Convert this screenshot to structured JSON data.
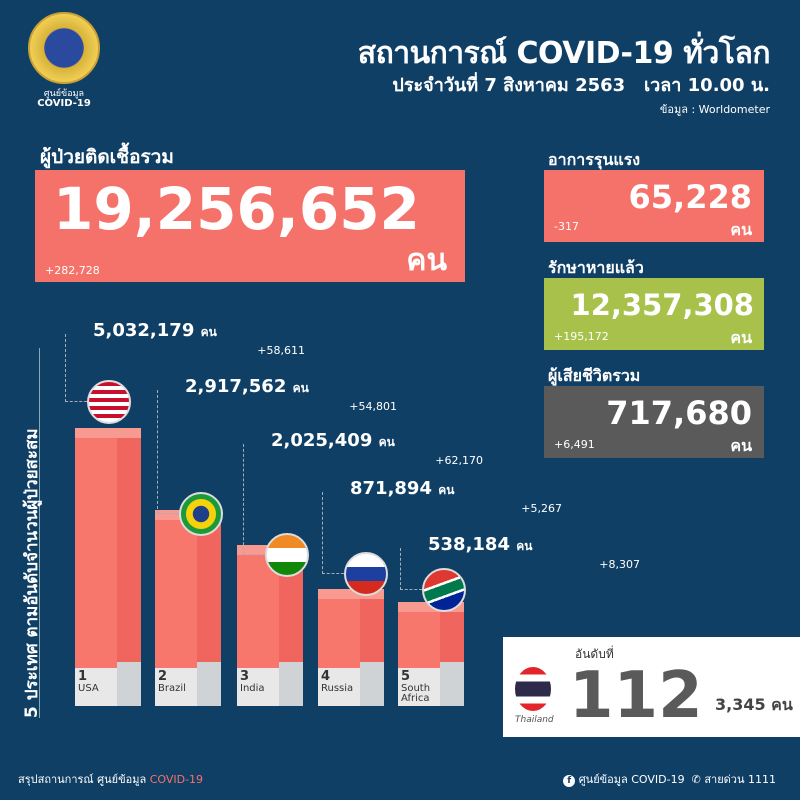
{
  "logo": {
    "line1": "ศูนย์ข้อมูล",
    "line2": "COVID-19"
  },
  "header": {
    "title": "สถานการณ์ COVID-19 ทั่วโลก",
    "date": "ประจำวันที่ 7 สิงหาคม 2563",
    "time": "เวลา 10.00 น.",
    "source": "ข้อมูล : Worldometer"
  },
  "total": {
    "label": "ผู้ป่วยติดเชื้อรวม",
    "value": "19,256,652",
    "unit": "คน",
    "change": "+282,728"
  },
  "severe": {
    "label": "อาการรุนแรง",
    "value": "65,228",
    "unit": "คน",
    "change": "-317"
  },
  "recovered": {
    "label": "รักษาหายแล้ว",
    "value": "12,357,308",
    "unit": "คน",
    "change": "+195,172"
  },
  "deaths": {
    "label": "ผู้เสียชีวิตรวม",
    "value": "717,680",
    "unit": "คน",
    "change": "+6,491"
  },
  "colors": {
    "background": "#103f66",
    "cases": "#f4726a",
    "recovered": "#a8c14a",
    "deaths": "#5a5a5a"
  },
  "vertical_label": "5 ประเทศ ตามอันดับจำนวนผู้ป่วยสะสม",
  "chart_data": {
    "type": "bar",
    "categories": [
      "USA",
      "Brazil",
      "India",
      "Russia",
      "South Africa"
    ],
    "ranks": [
      "1",
      "2",
      "3",
      "4",
      "5"
    ],
    "values": [
      5032179,
      2917562,
      2025409,
      871894,
      538184
    ],
    "labels": [
      "5,032,179",
      "2,917,562",
      "2,025,409",
      "871,894",
      "538,184"
    ],
    "changes": [
      "+58,611",
      "+54,801",
      "+62,170",
      "+5,267",
      "+8,307"
    ],
    "unit": "คน",
    "flags": [
      "usa-flag-icon",
      "brazil-flag-icon",
      "india-flag-icon",
      "russia-flag-icon",
      "south-africa-flag-icon"
    ]
  },
  "thailand": {
    "rank_label": "อันดับที่",
    "rank": "112",
    "cases": "3,345 คน",
    "country": "Thailand"
  },
  "footer": {
    "left": "สรุปสถานการณ์ ศูนย์ข้อมูล",
    "left_accent": "COVID-19",
    "facebook": "ศูนย์ข้อมูล COVID-19",
    "hotline": "สายด่วน 1111"
  }
}
